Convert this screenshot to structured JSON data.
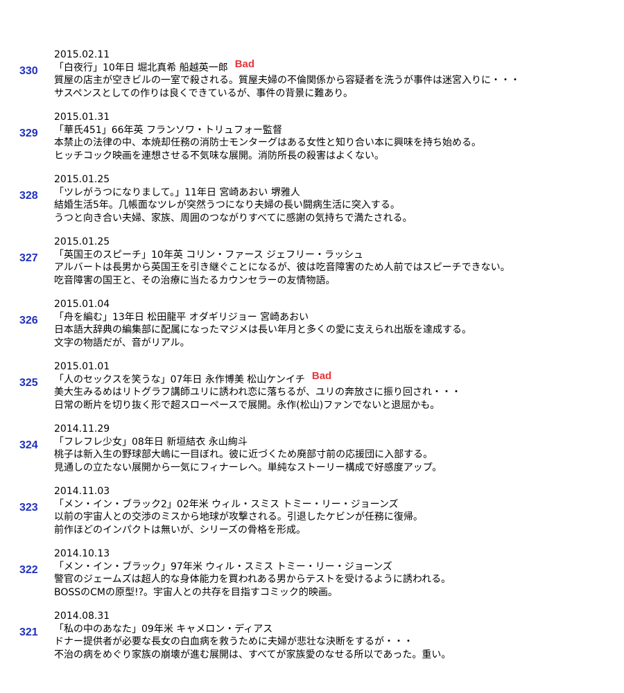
{
  "entries": [
    {
      "number": 330,
      "date": "2015.02.11",
      "title": "「白夜行」10年日 堀北真希 船越英一郎",
      "badge": "Bad",
      "lines": [
        "質屋の店主が空きビルの一室で殺される。質屋夫婦の不倫関係から容疑者を洗うが事件は迷宮入りに・・・",
        "サスペンスとしての作りは良くできているが、事件の背景に難あり。"
      ]
    },
    {
      "number": 329,
      "date": "2015.01.31",
      "title": "「華氏451」66年英 フランソワ・トリュフォー監督",
      "lines": [
        "本禁止の法律の中、本焼却任務の消防士モンターグはある女性と知り合い本に興味を持ち始める。",
        "ヒッチコック映画を連想させる不気味な展開。消防所長の殺害はよくない。"
      ]
    },
    {
      "number": 328,
      "date": "2015.01.25",
      "title": "「ツレがうつになりまして。」11年日 宮崎あおい 堺雅人",
      "lines": [
        "結婚生活5年。几帳面なツレが突然うつになり夫婦の長い闘病生活に突入する。",
        "うつと向き合い夫婦、家族、周囲のつながりすべてに感謝の気持ちで満たされる。"
      ]
    },
    {
      "number": 327,
      "date": "2015.01.25",
      "title": "「英国王のスピーチ」10年英 コリン・ファース ジェフリー・ラッシュ",
      "lines": [
        "アルバートは長男から英国王を引き継ぐことになるが、彼は吃音障害のため人前ではスピーチできない。",
        "吃音障害の国王と、その治療に当たるカウンセラーの友情物語。"
      ]
    },
    {
      "number": 326,
      "date": "2015.01.04",
      "title": "「舟を編む」13年日 松田龍平 オダギリジョー 宮崎あおい",
      "lines": [
        "日本語大辞典の編集部に配属になったマジメは長い年月と多くの愛に支えられ出版を達成する。",
        "文字の物語だが、音がリアル。"
      ]
    },
    {
      "number": 325,
      "date": "2015.01.01",
      "title": "「人のセックスを笑うな」07年日 永作博美 松山ケンイチ",
      "badge": "Bad",
      "lines": [
        "美大生みるめはリトグラフ講師ユリに誘われ恋に落ちるが、ユリの奔放さに振り回され・・・",
        "日常の断片を切り抜く形で超スローペースで展開。永作(松山)ファンでないと退屈かも。"
      ]
    },
    {
      "number": 324,
      "date": "2014.11.29",
      "title": "「フレフレ少女」08年日 新垣結衣 永山絢斗",
      "lines": [
        "桃子は新入生の野球部大嶋に一目ぼれ。彼に近づくため廃部寸前の応援団に入部する。",
        "見通しの立たない展開から一気にフィナーレへ。単純なストーリー構成で好感度アップ。"
      ]
    },
    {
      "number": 323,
      "date": "2014.11.03",
      "title": "「メン・イン・ブラック2」02年米 ウィル・スミス トミー・リー・ジョーンズ",
      "lines": [
        "以前の宇宙人との交渉のミスから地球が攻撃される。引退したケビンが任務に復帰。",
        "前作ほどのインパクトは無いが、シリーズの骨格を形成。"
      ]
    },
    {
      "number": 322,
      "date": "2014.10.13",
      "title": "「メン・イン・ブラック」97年米 ウィル・スミス トミー・リー・ジョーンズ",
      "lines": [
        "警官のジェームズは超人的な身体能力を買われある男からテストを受けるように誘われる。",
        "BOSSのCMの原型!?。宇宙人との共存を目指すコミック的映画。"
      ]
    },
    {
      "number": 321,
      "date": "2014.08.31",
      "title": "「私の中のあなた」09年米 キャメロン・ディアス",
      "lines": [
        "ドナー提供者が必要な長女の白血病を救うために夫婦が悲壮な決断をするが・・・",
        "不治の病をめぐり家族の崩壊が進む展開は、すべてが家族愛のなせる所以であった。重い。"
      ]
    }
  ]
}
